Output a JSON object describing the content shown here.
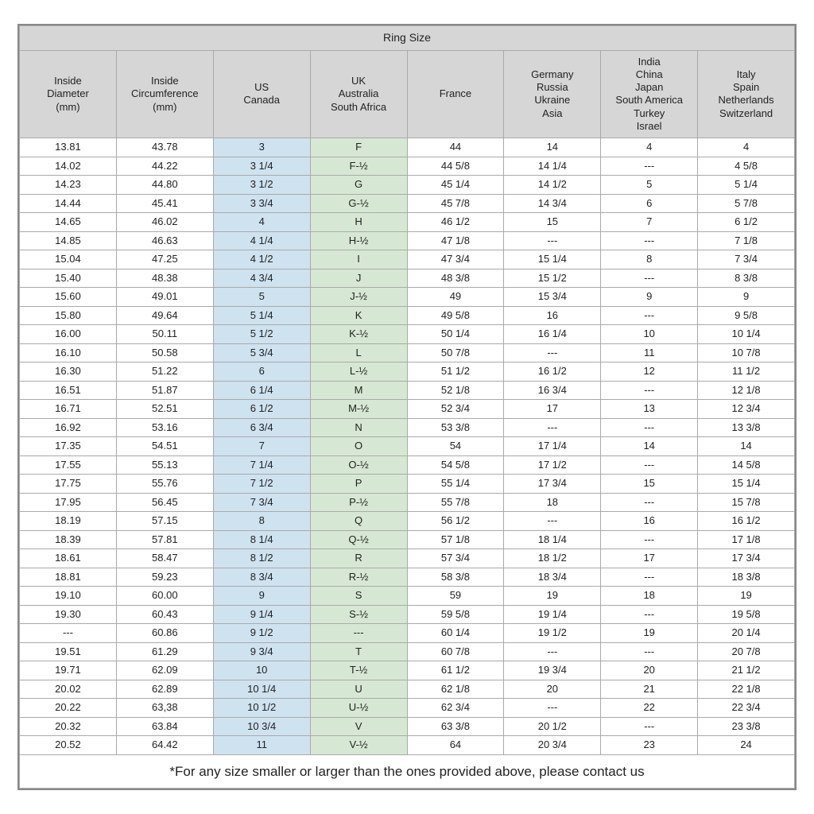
{
  "title": "Ring Size",
  "footer_note": "*For any size smaller or larger than the ones provided above, please contact us",
  "colors": {
    "header_bg": "#d6d6d6",
    "us_col_bg": "#cfe2f0",
    "uk_col_bg": "#d6e8d3",
    "border": "#aaaaaa",
    "outer_border": "#888888",
    "text": "#222222"
  },
  "columns": [
    {
      "key": "diam",
      "label": "Inside\nDiameter\n(mm)"
    },
    {
      "key": "circ",
      "label": "Inside\nCircumference\n(mm)"
    },
    {
      "key": "us",
      "label": "US\nCanada"
    },
    {
      "key": "uk",
      "label": "UK\nAustralia\nSouth Africa"
    },
    {
      "key": "fr",
      "label": "France"
    },
    {
      "key": "de",
      "label": "Germany\nRussia\nUkraine\nAsia"
    },
    {
      "key": "in",
      "label": "India\nChina\nJapan\nSouth America\nTurkey\nIsrael"
    },
    {
      "key": "it",
      "label": "Italy\nSpain\nNetherlands\nSwitzerland"
    }
  ],
  "rows": [
    [
      "13.81",
      "43.78",
      "3",
      "F",
      "44",
      "14",
      "4",
      "4"
    ],
    [
      "14.02",
      "44.22",
      "3 1/4",
      "F-½",
      "44 5/8",
      "14 1/4",
      "---",
      "4 5/8"
    ],
    [
      "14.23",
      "44.80",
      "3 1/2",
      "G",
      "45 1/4",
      "14 1/2",
      "5",
      "5 1/4"
    ],
    [
      "14.44",
      "45.41",
      "3 3/4",
      "G-½",
      "45 7/8",
      "14 3/4",
      "6",
      "5 7/8"
    ],
    [
      "14.65",
      "46.02",
      "4",
      "H",
      "46 1/2",
      "15",
      "7",
      "6 1/2"
    ],
    [
      "14.85",
      "46.63",
      "4 1/4",
      "H-½",
      "47 1/8",
      "---",
      "---",
      "7 1/8"
    ],
    [
      "15.04",
      "47.25",
      "4 1/2",
      "I",
      "47 3/4",
      "15 1/4",
      "8",
      "7 3/4"
    ],
    [
      "15.40",
      "48.38",
      "4 3/4",
      "J",
      "48 3/8",
      "15 1/2",
      "---",
      "8 3/8"
    ],
    [
      "15.60",
      "49.01",
      "5",
      "J-½",
      "49",
      "15 3/4",
      "9",
      "9"
    ],
    [
      "15.80",
      "49.64",
      "5 1/4",
      "K",
      "49 5/8",
      "16",
      "---",
      "9 5/8"
    ],
    [
      "16.00",
      "50.11",
      "5 1/2",
      "K-½",
      "50 1/4",
      "16 1/4",
      "10",
      "10 1/4"
    ],
    [
      "16.10",
      "50.58",
      "5 3/4",
      "L",
      "50 7/8",
      "---",
      "11",
      "10 7/8"
    ],
    [
      "16.30",
      "51.22",
      "6",
      "L-½",
      "51 1/2",
      "16 1/2",
      "12",
      "11 1/2"
    ],
    [
      "16.51",
      "51.87",
      "6 1/4",
      "M",
      "52 1/8",
      "16 3/4",
      "---",
      "12 1/8"
    ],
    [
      "16.71",
      "52.51",
      "6 1/2",
      "M-½",
      "52 3/4",
      "17",
      "13",
      "12 3/4"
    ],
    [
      "16.92",
      "53.16",
      "6 3/4",
      "N",
      "53 3/8",
      "---",
      "---",
      "13 3/8"
    ],
    [
      "17.35",
      "54.51",
      "7",
      "O",
      "54",
      "17 1/4",
      "14",
      "14"
    ],
    [
      "17.55",
      "55.13",
      "7 1/4",
      "O-½",
      "54 5/8",
      "17 1/2",
      "---",
      "14 5/8"
    ],
    [
      "17.75",
      "55.76",
      "7 1/2",
      "P",
      "55 1/4",
      "17 3/4",
      "15",
      "15 1/4"
    ],
    [
      "17.95",
      "56.45",
      "7 3/4",
      "P-½",
      "55 7/8",
      "18",
      "---",
      "15 7/8"
    ],
    [
      "18.19",
      "57.15",
      "8",
      "Q",
      "56 1/2",
      "---",
      "16",
      "16 1/2"
    ],
    [
      "18.39",
      "57.81",
      "8 1/4",
      "Q-½",
      "57 1/8",
      "18 1/4",
      "---",
      "17 1/8"
    ],
    [
      "18.61",
      "58.47",
      "8 1/2",
      "R",
      "57 3/4",
      "18 1/2",
      "17",
      "17 3/4"
    ],
    [
      "18.81",
      "59.23",
      "8 3/4",
      "R-½",
      "58 3/8",
      "18 3/4",
      "---",
      "18 3/8"
    ],
    [
      "19.10",
      "60.00",
      "9",
      "S",
      "59",
      "19",
      "18",
      "19"
    ],
    [
      "19.30",
      "60.43",
      "9 1/4",
      "S-½",
      "59 5/8",
      "19 1/4",
      "---",
      "19 5/8"
    ],
    [
      "---",
      "60.86",
      "9 1/2",
      "---",
      "60 1/4",
      "19 1/2",
      "19",
      "20 1/4"
    ],
    [
      "19.51",
      "61.29",
      "9 3/4",
      "T",
      "60 7/8",
      "---",
      "---",
      "20 7/8"
    ],
    [
      "19.71",
      "62.09",
      "10",
      "T-½",
      "61 1/2",
      "19 3/4",
      "20",
      "21 1/2"
    ],
    [
      "20.02",
      "62.89",
      "10 1/4",
      "U",
      "62 1/8",
      "20",
      "21",
      "22 1/8"
    ],
    [
      "20.22",
      "63,38",
      "10 1/2",
      "U-½",
      "62 3/4",
      "---",
      "22",
      "22 3/4"
    ],
    [
      "20.32",
      "63.84",
      "10 3/4",
      "V",
      "63 3/8",
      "20 1/2",
      "---",
      "23 3/8"
    ],
    [
      "20.52",
      "64.42",
      "11",
      "V-½",
      "64",
      "20 3/4",
      "23",
      "24"
    ]
  ]
}
